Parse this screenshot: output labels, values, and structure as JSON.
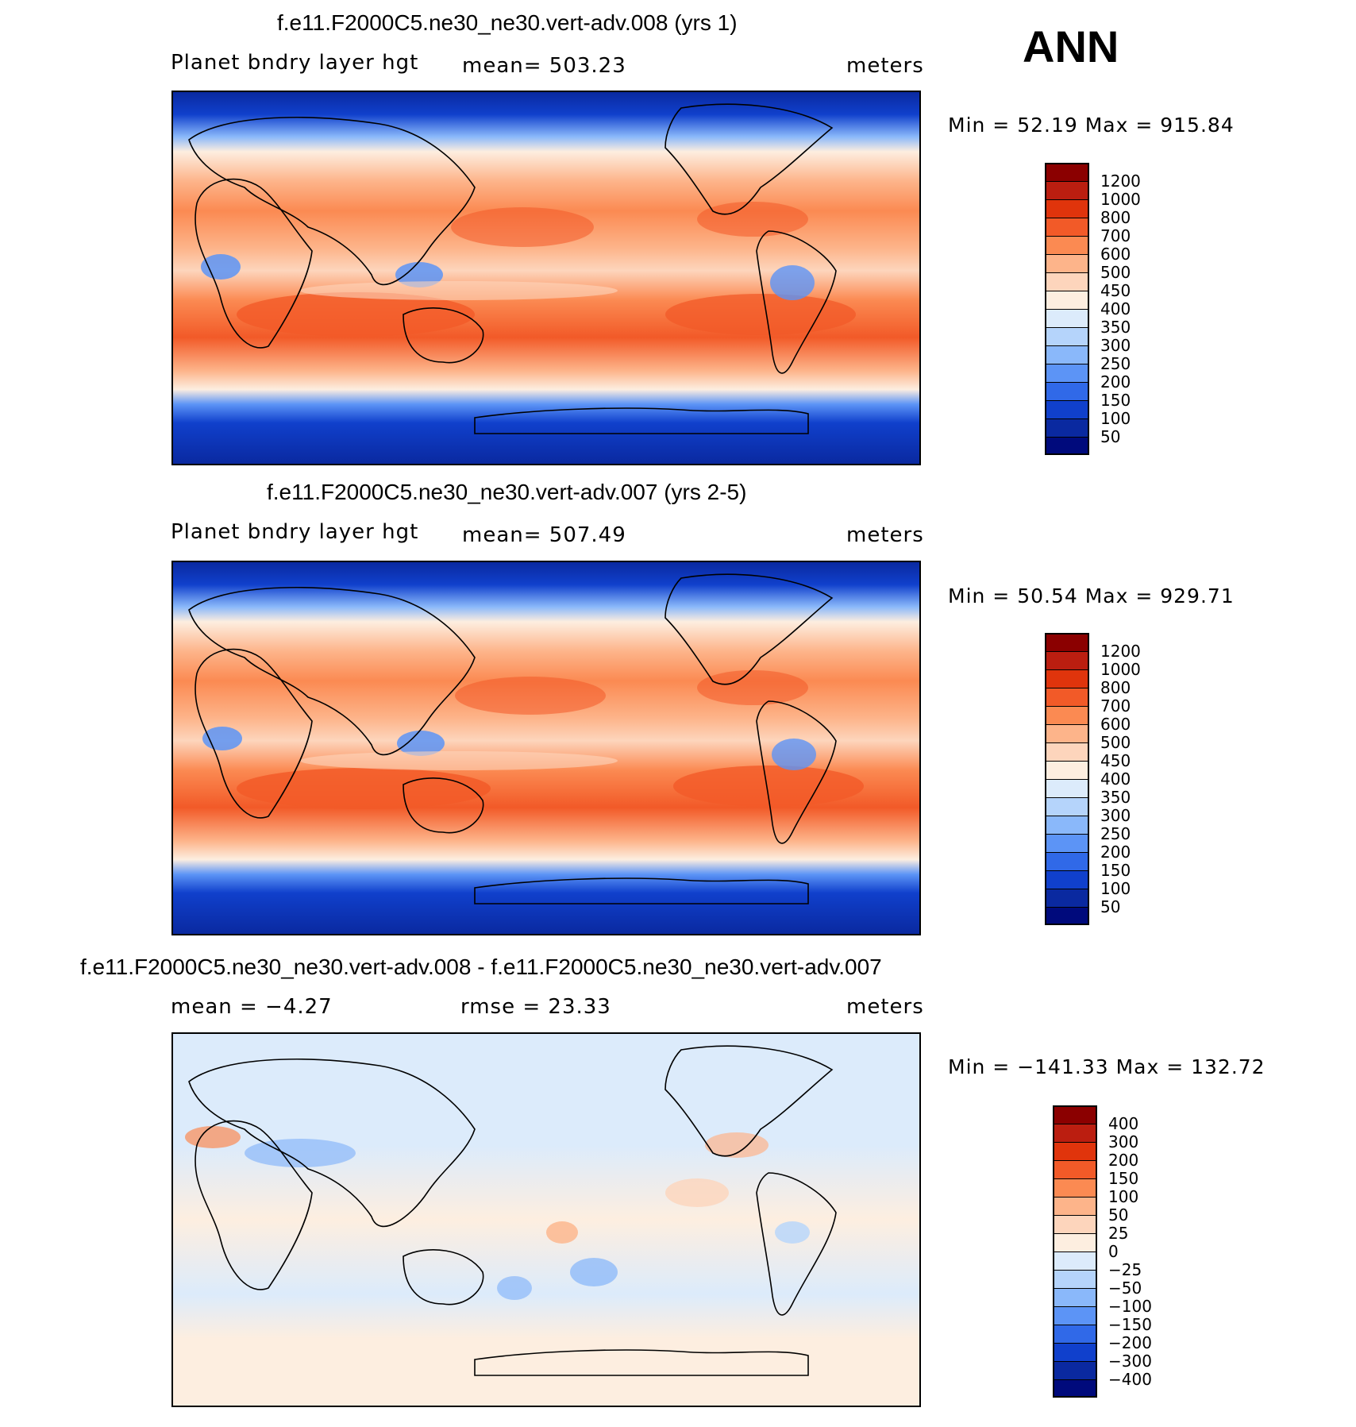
{
  "header": {
    "season": "ANN"
  },
  "panels": [
    {
      "title": "f.e11.F2000C5.ne30_ne30.vert-adv.008 (yrs 1)",
      "left_label": "Planet bndry layer hgt",
      "center_label": "mean=  503.23",
      "right_label": "meters",
      "stats": "Min =   52.19  Max  =  915.84"
    },
    {
      "title": "f.e11.F2000C5.ne30_ne30.vert-adv.007 (yrs 2-5)",
      "left_label": "Planet bndry layer hgt",
      "center_label": "mean=  507.49",
      "right_label": "meters",
      "stats": "Min =   50.54  Max  =  929.71"
    },
    {
      "title": "f.e11.F2000C5.ne30_ne30.vert-adv.008 - f.e11.F2000C5.ne30_ne30.vert-adv.007",
      "left_label": "mean =    −4.27",
      "center_label": "rmse =    23.33",
      "right_label": "meters",
      "stats": "Min = −141.33  Max  =  132.72"
    }
  ],
  "chart_data": [
    {
      "type": "heatmap",
      "title": "f.e11.F2000C5.ne30_ne30.vert-adv.008 (yrs 1)",
      "variable": "Planet bndry layer hgt",
      "units": "meters",
      "mean": 503.23,
      "min": 52.19,
      "max": 915.84,
      "colorbar_levels": [
        "1200",
        "1000",
        "800",
        "700",
        "600",
        "500",
        "450",
        "400",
        "350",
        "300",
        "250",
        "200",
        "150",
        "100",
        "50"
      ],
      "colorbar_colors": [
        "#8b0000",
        "#bb1e10",
        "#e0340c",
        "#f25a28",
        "#fb8a52",
        "#fdb48a",
        "#fdd5bc",
        "#fdeee0",
        "#dcebfb",
        "#b5d4fb",
        "#8ab8fa",
        "#5c94f6",
        "#3069e8",
        "#1040cc",
        "#0a29a0",
        "#000a7c"
      ]
    },
    {
      "type": "heatmap",
      "title": "f.e11.F2000C5.ne30_ne30.vert-adv.007 (yrs 2-5)",
      "variable": "Planet bndry layer hgt",
      "units": "meters",
      "mean": 507.49,
      "min": 50.54,
      "max": 929.71,
      "colorbar_levels": [
        "1200",
        "1000",
        "800",
        "700",
        "600",
        "500",
        "450",
        "400",
        "350",
        "300",
        "250",
        "200",
        "150",
        "100",
        "50"
      ],
      "colorbar_colors": [
        "#8b0000",
        "#bb1e10",
        "#e0340c",
        "#f25a28",
        "#fb8a52",
        "#fdb48a",
        "#fdd5bc",
        "#fdeee0",
        "#dcebfb",
        "#b5d4fb",
        "#8ab8fa",
        "#5c94f6",
        "#3069e8",
        "#1040cc",
        "#0a29a0",
        "#000a7c"
      ]
    },
    {
      "type": "heatmap",
      "title": "f.e11.F2000C5.ne30_ne30.vert-adv.008 - f.e11.F2000C5.ne30_ne30.vert-adv.007",
      "units": "meters",
      "mean": -4.27,
      "rmse": 23.33,
      "min": -141.33,
      "max": 132.72,
      "colorbar_levels": [
        "400",
        "300",
        "200",
        "150",
        "100",
        "50",
        "25",
        "0",
        "−25",
        "−50",
        "−100",
        "−150",
        "−200",
        "−300",
        "−400"
      ],
      "colorbar_colors": [
        "#8b0000",
        "#bb1e10",
        "#e0340c",
        "#f25a28",
        "#fb8a52",
        "#fdb48a",
        "#fdd5bc",
        "#fdeee0",
        "#dcebfb",
        "#b5d4fb",
        "#8ab8fa",
        "#5c94f6",
        "#3069e8",
        "#1040cc",
        "#0a29a0",
        "#000a7c"
      ]
    }
  ]
}
